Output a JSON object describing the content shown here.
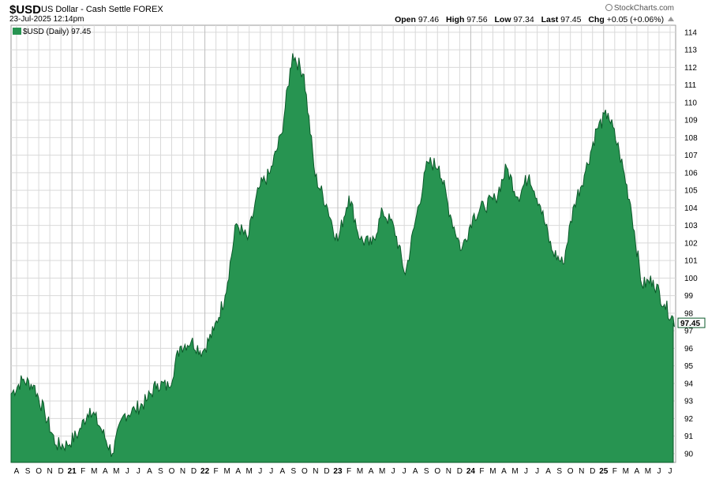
{
  "header": {
    "symbol": "$USD",
    "name": "US Dollar - Cash Settle",
    "exchange": "FOREX",
    "timestamp": "23-Jul-2025 12:14pm",
    "brand": "StockCharts.com",
    "quote": {
      "open_label": "Open",
      "open": "97.46",
      "high_label": "High",
      "high": "97.56",
      "low_label": "Low",
      "low": "97.34",
      "last_label": "Last",
      "last": "97.45",
      "chg_label": "Chg",
      "chg": "+0.05 (+0.06%)"
    }
  },
  "legend": {
    "label": "$USD (Daily) 97.45"
  },
  "colors": {
    "fill": "#279451",
    "line": "#0b5a2a",
    "grid": "#d9d9d9",
    "price_tag": "#ffffff"
  },
  "chart_data": {
    "type": "area",
    "title": "$USD US Dollar - Cash Settle FOREX",
    "ylim": [
      89.5,
      114.4
    ],
    "y_ticks": [
      90,
      91,
      92,
      93,
      94,
      95,
      96,
      97,
      98,
      99,
      100,
      101,
      102,
      103,
      104,
      105,
      106,
      107,
      108,
      109,
      110,
      111,
      112,
      113,
      114
    ],
    "last_value": "97.45",
    "x_ticks": [
      "A",
      "S",
      "O",
      "N",
      "D",
      "21",
      "F",
      "M",
      "A",
      "M",
      "J",
      "J",
      "A",
      "S",
      "O",
      "N",
      "D",
      "22",
      "F",
      "M",
      "A",
      "M",
      "J",
      "J",
      "A",
      "S",
      "O",
      "N",
      "D",
      "23",
      "F",
      "M",
      "A",
      "M",
      "J",
      "J",
      "A",
      "S",
      "O",
      "N",
      "D",
      "24",
      "F",
      "M",
      "A",
      "M",
      "J",
      "J",
      "A",
      "S",
      "O",
      "N",
      "D",
      "25",
      "F",
      "M",
      "A",
      "M",
      "J",
      "J"
    ],
    "year_ticks": [
      "21",
      "22",
      "23",
      "24",
      "25"
    ],
    "series": [
      {
        "x": [
          "2020-08",
          "2020-09",
          "2020-10",
          "2020-11",
          "2020-12",
          "2021-01",
          "2021-02",
          "2021-03",
          "2021-04",
          "2021-05",
          "2021-06",
          "2021-07",
          "2021-08",
          "2021-09",
          "2021-10",
          "2021-11",
          "2021-12",
          "2022-01",
          "2022-02",
          "2022-03",
          "2022-04",
          "2022-05",
          "2022-06",
          "2022-07",
          "2022-08",
          "2022-09",
          "2022-10",
          "2022-11",
          "2022-12",
          "2023-01",
          "2023-02",
          "2023-03",
          "2023-04",
          "2023-05",
          "2023-06",
          "2023-07",
          "2023-08",
          "2023-09",
          "2023-10",
          "2023-11",
          "2023-12",
          "2024-01",
          "2024-02",
          "2024-03",
          "2024-04",
          "2024-05",
          "2024-06",
          "2024-07",
          "2024-08",
          "2024-09",
          "2024-10",
          "2024-11",
          "2024-12",
          "2025-01",
          "2025-02",
          "2025-03",
          "2025-04",
          "2025-05",
          "2025-06",
          "2025-07"
        ],
        "values": [
          93.4,
          94.2,
          93.9,
          92.3,
          90.5,
          90.5,
          91.2,
          92.6,
          91.4,
          90.0,
          92.2,
          92.5,
          93.0,
          94.0,
          93.8,
          96.1,
          96.4,
          95.8,
          97.0,
          99.0,
          103.1,
          102.2,
          105.1,
          106.0,
          108.2,
          112.8,
          111.6,
          105.8,
          104.2,
          102.1,
          104.7,
          102.2,
          101.9,
          103.8,
          102.9,
          100.2,
          103.6,
          106.6,
          106.4,
          103.6,
          101.6,
          103.5,
          104.1,
          104.5,
          106.3,
          104.6,
          105.9,
          104.1,
          101.6,
          100.8,
          104.2,
          106.1,
          108.5,
          109.4,
          107.2,
          104.2,
          99.6,
          99.9,
          98.5,
          97.45
        ]
      }
    ]
  }
}
